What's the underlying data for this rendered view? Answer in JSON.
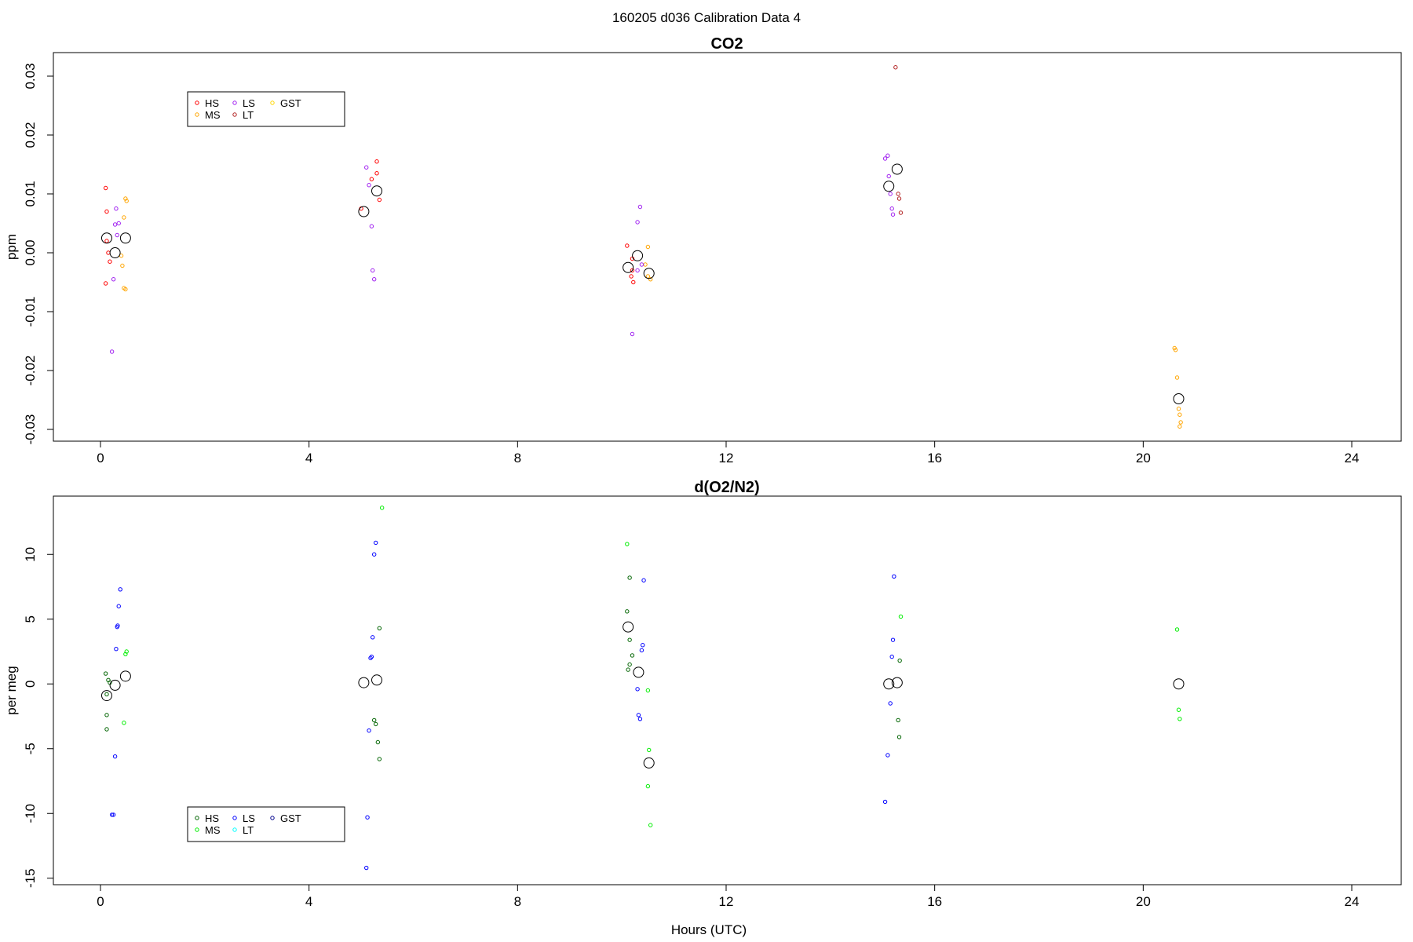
{
  "figure_title": "160205   d036   Calibration Data 4",
  "x_axis_label": "Hours (UTC)",
  "chart_data": [
    {
      "type": "scatter",
      "title": "CO2",
      "xlabel": "",
      "ylabel": "ppm",
      "xlim": [
        0,
        24
      ],
      "ylim": [
        -0.032,
        0.034
      ],
      "x_ticks": [
        0,
        4,
        8,
        12,
        16,
        20,
        24
      ],
      "x_tick_labels": [
        "0",
        "4",
        "8",
        "12",
        "16",
        "20",
        "24"
      ],
      "y_ticks": [
        -0.03,
        -0.02,
        -0.01,
        0.0,
        0.01,
        0.02,
        0.03
      ],
      "y_tick_labels": [
        "-0.03",
        "-0.02",
        "-0.01",
        "0.00",
        "0.01",
        "0.02",
        "0.03"
      ],
      "grid": false,
      "legend_position": "top-left",
      "legend": [
        {
          "name": "HS",
          "color": "#ff0000"
        },
        {
          "name": "MS",
          "color": "#ffa500"
        },
        {
          "name": "LS",
          "color": "#a020f0"
        },
        {
          "name": "LT",
          "color": "#b22222"
        },
        {
          "name": "GST",
          "color": "#ffd700"
        }
      ],
      "series": [
        {
          "name": "HS",
          "color": "#ff0000",
          "points": [
            [
              0.1,
              0.011
            ],
            [
              0.12,
              0.007
            ],
            [
              0.15,
              0.0
            ],
            [
              0.18,
              -0.0015
            ],
            [
              0.1,
              -0.0052
            ],
            [
              0.12,
              0.002
            ],
            [
              5.0,
              0.0075
            ],
            [
              5.2,
              0.0125
            ],
            [
              5.3,
              0.0135
            ],
            [
              5.3,
              0.0155
            ],
            [
              5.35,
              0.009
            ],
            [
              10.1,
              0.0012
            ],
            [
              10.2,
              -0.001
            ],
            [
              10.2,
              -0.003
            ],
            [
              10.22,
              -0.005
            ],
            [
              10.18,
              -0.004
            ]
          ]
        },
        {
          "name": "MS",
          "color": "#ffa500",
          "points": [
            [
              0.4,
              -0.0005
            ],
            [
              0.42,
              -0.0022
            ],
            [
              0.45,
              -0.006
            ],
            [
              0.48,
              -0.0062
            ],
            [
              0.45,
              0.006
            ],
            [
              0.48,
              0.0092
            ],
            [
              0.5,
              0.0088
            ],
            [
              10.5,
              0.001
            ],
            [
              10.45,
              -0.002
            ],
            [
              10.5,
              -0.004
            ],
            [
              10.55,
              -0.0045
            ],
            [
              20.6,
              -0.0162
            ],
            [
              20.62,
              -0.0165
            ],
            [
              20.65,
              -0.0212
            ],
            [
              20.68,
              -0.0265
            ],
            [
              20.7,
              -0.0275
            ],
            [
              20.72,
              -0.0288
            ],
            [
              20.7,
              -0.0295
            ]
          ]
        },
        {
          "name": "LS",
          "color": "#a020f0",
          "points": [
            [
              0.22,
              -0.0168
            ],
            [
              0.25,
              -0.0045
            ],
            [
              0.28,
              0.0048
            ],
            [
              0.3,
              0.0075
            ],
            [
              0.32,
              0.003
            ],
            [
              0.35,
              0.005
            ],
            [
              5.1,
              0.0145
            ],
            [
              5.15,
              0.0115
            ],
            [
              5.2,
              0.0045
            ],
            [
              5.22,
              -0.003
            ],
            [
              5.25,
              -0.0045
            ],
            [
              10.2,
              -0.0138
            ],
            [
              10.3,
              0.0052
            ],
            [
              10.35,
              0.0078
            ],
            [
              10.38,
              -0.002
            ],
            [
              10.3,
              -0.003
            ],
            [
              15.05,
              0.016
            ],
            [
              15.1,
              0.0165
            ],
            [
              15.12,
              0.013
            ],
            [
              15.15,
              0.01
            ],
            [
              15.18,
              0.0075
            ],
            [
              15.2,
              0.0065
            ]
          ]
        },
        {
          "name": "LT",
          "color": "#b22222",
          "points": [
            [
              15.25,
              0.0315
            ],
            [
              15.3,
              0.01
            ],
            [
              15.32,
              0.0092
            ],
            [
              15.35,
              0.0068
            ]
          ]
        },
        {
          "name": "mean",
          "color": "#000000",
          "marker": "large-circle",
          "points": [
            [
              0.12,
              0.0025
            ],
            [
              0.28,
              0.0
            ],
            [
              0.48,
              0.0025
            ],
            [
              5.05,
              0.007
            ],
            [
              5.3,
              0.0105
            ],
            [
              10.12,
              -0.0025
            ],
            [
              10.3,
              -0.0005
            ],
            [
              10.52,
              -0.0035
            ],
            [
              15.12,
              0.0113
            ],
            [
              15.28,
              0.0142
            ],
            [
              20.68,
              -0.0248
            ]
          ]
        }
      ]
    },
    {
      "type": "scatter",
      "title": "d(O2/N2)",
      "xlabel": "Hours (UTC)",
      "ylabel": "per meg",
      "xlim": [
        0,
        24
      ],
      "ylim": [
        -15.5,
        14.5
      ],
      "x_ticks": [
        0,
        4,
        8,
        12,
        16,
        20,
        24
      ],
      "x_tick_labels": [
        "0",
        "4",
        "8",
        "12",
        "16",
        "20",
        "24"
      ],
      "y_ticks": [
        -15,
        -10,
        -5,
        0,
        5,
        10
      ],
      "y_tick_labels": [
        "-15",
        "-10",
        "-5",
        "0",
        "5",
        "10"
      ],
      "grid": false,
      "legend_position": "bottom-left",
      "legend": [
        {
          "name": "HS",
          "color": "#006400"
        },
        {
          "name": "MS",
          "color": "#00ee00"
        },
        {
          "name": "LS",
          "color": "#0000ff"
        },
        {
          "name": "LT",
          "color": "#00ffff"
        },
        {
          "name": "GST",
          "color": "#00008b"
        }
      ],
      "series": [
        {
          "name": "HS",
          "color": "#006400",
          "points": [
            [
              0.1,
              0.8
            ],
            [
              0.12,
              -0.8
            ],
            [
              0.15,
              0.3
            ],
            [
              0.18,
              0.1
            ],
            [
              0.12,
              -2.4
            ],
            [
              0.12,
              -3.5
            ],
            [
              5.25,
              -2.8
            ],
            [
              5.28,
              -3.1
            ],
            [
              5.32,
              -4.5
            ],
            [
              5.35,
              -5.8
            ],
            [
              5.35,
              4.3
            ],
            [
              10.15,
              3.4
            ],
            [
              10.2,
              2.2
            ],
            [
              10.15,
              1.5
            ],
            [
              10.12,
              1.1
            ],
            [
              10.1,
              5.6
            ],
            [
              10.15,
              8.2
            ],
            [
              15.3,
              -2.8
            ],
            [
              15.32,
              -4.1
            ],
            [
              15.33,
              1.8
            ]
          ]
        },
        {
          "name": "MS",
          "color": "#00ee00",
          "points": [
            [
              0.48,
              2.3
            ],
            [
              0.5,
              2.5
            ],
            [
              0.45,
              -3.0
            ],
            [
              5.4,
              13.6
            ],
            [
              10.1,
              10.8
            ],
            [
              10.5,
              -0.5
            ],
            [
              10.52,
              -5.1
            ],
            [
              10.5,
              -7.9
            ],
            [
              10.55,
              -10.9
            ],
            [
              15.35,
              5.2
            ],
            [
              20.65,
              4.2
            ],
            [
              20.68,
              -2.0
            ],
            [
              20.7,
              -2.7
            ]
          ]
        },
        {
          "name": "LS",
          "color": "#0000ff",
          "points": [
            [
              0.22,
              -10.1
            ],
            [
              0.25,
              -10.1
            ],
            [
              0.28,
              -5.6
            ],
            [
              0.3,
              2.7
            ],
            [
              0.32,
              4.4
            ],
            [
              0.33,
              4.5
            ],
            [
              0.35,
              6.0
            ],
            [
              0.38,
              7.3
            ],
            [
              5.1,
              -14.2
            ],
            [
              5.12,
              -10.3
            ],
            [
              5.15,
              -3.6
            ],
            [
              5.18,
              2.0
            ],
            [
              5.2,
              2.1
            ],
            [
              5.22,
              3.6
            ],
            [
              5.25,
              10.0
            ],
            [
              5.28,
              10.9
            ],
            [
              10.3,
              -0.4
            ],
            [
              10.32,
              -2.4
            ],
            [
              10.35,
              -2.7
            ],
            [
              10.38,
              2.6
            ],
            [
              10.4,
              3.0
            ],
            [
              10.42,
              8.0
            ],
            [
              15.05,
              -9.1
            ],
            [
              15.1,
              -5.5
            ],
            [
              15.15,
              -1.5
            ],
            [
              15.18,
              2.1
            ],
            [
              15.2,
              3.4
            ],
            [
              15.22,
              8.3
            ]
          ]
        },
        {
          "name": "mean",
          "color": "#000000",
          "marker": "large-circle",
          "points": [
            [
              0.12,
              -0.9
            ],
            [
              0.28,
              -0.1
            ],
            [
              0.48,
              0.6
            ],
            [
              5.05,
              0.1
            ],
            [
              5.3,
              0.3
            ],
            [
              10.12,
              4.4
            ],
            [
              10.32,
              0.9
            ],
            [
              10.52,
              -6.1
            ],
            [
              15.12,
              0.0
            ],
            [
              15.28,
              0.1
            ],
            [
              20.68,
              0.0
            ]
          ]
        }
      ]
    }
  ]
}
